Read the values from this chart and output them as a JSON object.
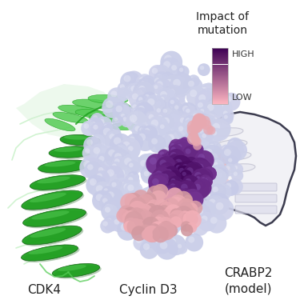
{
  "legend_title": "Impact of\nmutation",
  "legend_high_label": "HIGH",
  "legend_low_label": "LOW",
  "label_cdk4": "CDK4",
  "label_cyclin": "Cyclin D3",
  "label_crabp2": "CRABP2\n(model)",
  "label_fontsize": 11,
  "legend_title_fontsize": 10,
  "legend_label_fontsize": 8,
  "bg_color": "#ffffff",
  "fig_width": 3.75,
  "fig_height": 3.75,
  "dpi": 100,
  "cdk4_color_dark": "#1a9e1a",
  "cdk4_color_mid": "#55cc55",
  "cdk4_color_light": "#aaeaaa",
  "cyclin_surface_color": "#c8cce8",
  "cyclin_purple_dark": "#3d0055",
  "cyclin_purple_mid": "#8040a0",
  "cyclin_pink": "#e8a8b0",
  "crabp2_fill": "#f0f0f5",
  "crabp2_edge": "#1a1a30"
}
